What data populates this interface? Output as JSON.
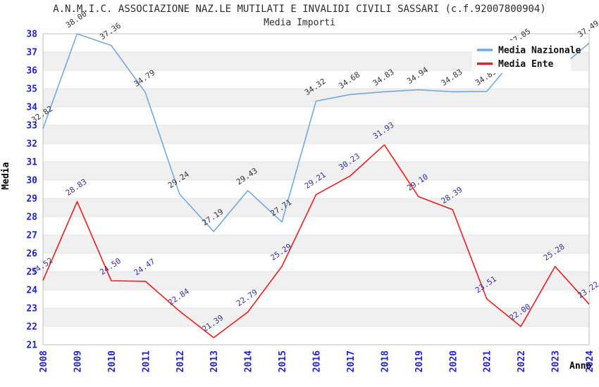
{
  "header": {
    "title": "A.N.M.I.C. ASSOCIAZIONE NAZ.LE MUTILATI E INVALIDI CIVILI SASSARI (c.f.92007800904)",
    "subtitle": "Media Importi"
  },
  "colors": {
    "tick_label": "#2222cc",
    "band_gray": "#f0f0f0",
    "band_white": "#ffffff",
    "gridline": "#e4e4e4",
    "frame": "#c9c9c9",
    "legend_bg": "#ffffff",
    "nazionale_line": "#74a9dd",
    "ente_line": "#ee1c1c",
    "nazionale_label": "#333333",
    "ente_label": "#333399"
  },
  "chart_data": {
    "type": "line",
    "title": "A.N.M.I.C. ASSOCIAZIONE NAZ.LE MUTILATI E INVALIDI CIVILI SASSARI (c.f.92007800904)",
    "subtitle": "Media Importi",
    "xlabel": "Anno",
    "ylabel": "Media",
    "ylim": [
      21,
      38
    ],
    "yticks": [
      21,
      22,
      23,
      24,
      25,
      26,
      27,
      28,
      29,
      30,
      31,
      32,
      33,
      34,
      35,
      36,
      37,
      38
    ],
    "grid": "horizontal-alternating-bands",
    "legend_position": "top-right",
    "x": [
      2008,
      2009,
      2010,
      2011,
      2012,
      2013,
      2014,
      2015,
      2016,
      2017,
      2018,
      2019,
      2020,
      2021,
      2022,
      2023,
      2024
    ],
    "series": [
      {
        "name": "Media Nazionale",
        "color": "#74a9dd",
        "label_color": "#333333",
        "values": [
          32.82,
          38.0,
          37.36,
          34.79,
          29.24,
          27.19,
          29.43,
          27.71,
          34.32,
          34.68,
          34.83,
          34.94,
          34.83,
          34.85,
          37.05,
          35.9,
          37.49
        ],
        "labels": [
          "32.82",
          "38.00",
          "37.36",
          "34.79",
          "29.24",
          "27.19",
          "29.43",
          "27.71",
          "34.32",
          "34.68",
          "34.83",
          "34.94",
          "34.83",
          "34.85",
          "37.05",
          null,
          "37.49"
        ]
      },
      {
        "name": "Media Ente",
        "color": "#ee1c1c",
        "label_color": "#333399",
        "values": [
          24.52,
          28.83,
          24.5,
          24.47,
          22.84,
          21.39,
          22.79,
          25.29,
          29.21,
          30.23,
          31.93,
          29.1,
          28.39,
          23.51,
          22.0,
          25.28,
          23.22
        ],
        "labels": [
          "24.52",
          "28.83",
          "24.50",
          "24.47",
          "22.84",
          "21.39",
          "22.79",
          "25.29",
          "29.21",
          "30.23",
          "31.93",
          "29.10",
          "28.39",
          "23.51",
          "22.00",
          "25.28",
          "23.22"
        ]
      }
    ]
  }
}
